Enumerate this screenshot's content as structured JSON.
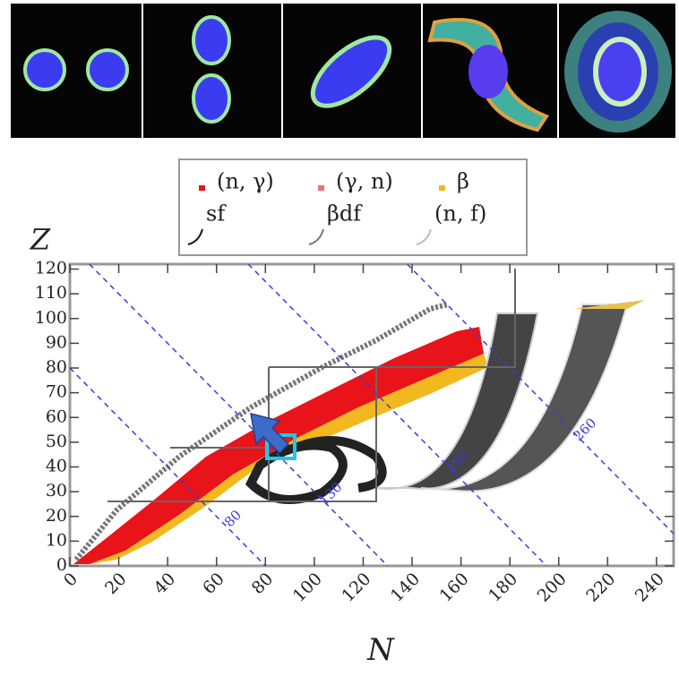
{
  "chart_data": {
    "type": "region",
    "xlabel": "N",
    "ylabel": "Z",
    "xlim": [
      0,
      247
    ],
    "ylim": [
      0,
      122
    ],
    "xticks": [
      0,
      20,
      40,
      60,
      80,
      100,
      120,
      140,
      160,
      180,
      200,
      220,
      240
    ],
    "yticks": [
      0,
      10,
      20,
      30,
      40,
      50,
      60,
      70,
      80,
      90,
      100,
      110,
      120
    ],
    "isobars": [
      80,
      130,
      195,
      260
    ],
    "isobar_color": "#3a3ae0",
    "series": [
      {
        "name": "(n, γ)",
        "color": "#e8141a",
        "style": "marker"
      },
      {
        "name": "(γ, n)",
        "color": "#f07070",
        "style": "marker"
      },
      {
        "name": "β",
        "color": "#f2b820",
        "style": "marker"
      },
      {
        "name": "sf",
        "color": "#111111",
        "style": "line"
      },
      {
        "name": "βdf",
        "color": "#777777",
        "style": "line"
      },
      {
        "name": "(n, f)",
        "color": "#bbbbbb",
        "style": "line"
      }
    ]
  }
}
